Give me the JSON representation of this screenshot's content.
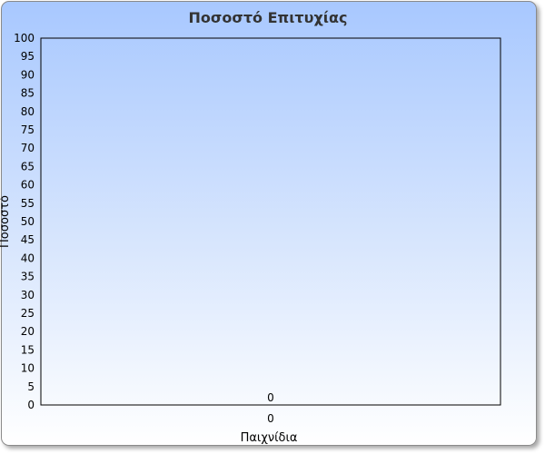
{
  "chart_data": {
    "type": "bar",
    "title": "Ποσοστό Επιτυχίας",
    "xlabel": "Παιχνίδια",
    "ylabel": "Ποσοστό",
    "categories": [
      "0"
    ],
    "values": [
      0
    ],
    "data_labels": [
      "0"
    ],
    "ylim": [
      0,
      100
    ],
    "ytick_step": 5,
    "grid": false,
    "legend": "none",
    "colors": {
      "background_top": "#a8c8ff",
      "background_bottom": "#ffffff",
      "plot_border": "#000000",
      "title": "#333333"
    }
  }
}
